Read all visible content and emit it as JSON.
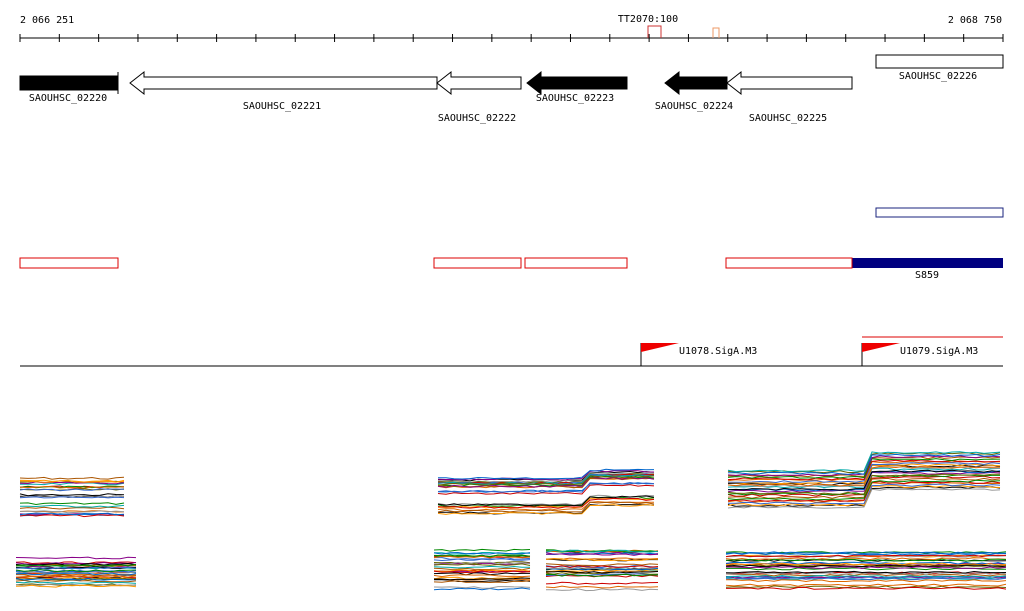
{
  "ruler": {
    "start": "2 066 251",
    "end": "2 068 750"
  },
  "terminator": "TT2070:100",
  "genes": [
    "SAOUHSC_02220",
    "SAOUHSC_02221",
    "SAOUHSC_02222",
    "SAOUHSC_02223",
    "SAOUHSC_02224",
    "SAOUHSC_02225",
    "SAOUHSC_02226"
  ],
  "segment": "S859",
  "promoters": [
    "U1078.SigA.M3",
    "U1079.SigA.M3"
  ]
}
